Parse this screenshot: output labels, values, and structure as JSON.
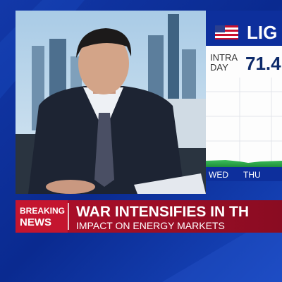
{
  "ticker": {
    "name": "LIG",
    "label_lines": [
      "INTRA",
      "DAY"
    ],
    "price": "71.4",
    "days": [
      "WED",
      "THU"
    ]
  },
  "banner": {
    "tag_lines": [
      "BREAKING",
      "NEWS"
    ],
    "headline": "WAR INTENSIFIES IN TH",
    "subhead": "IMPACT ON ENERGY MARKETS"
  }
}
